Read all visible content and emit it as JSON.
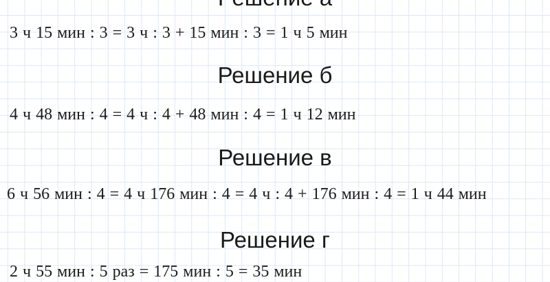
{
  "page": {
    "kind": "math-solutions-sheet",
    "background_color": "#ffffff",
    "grid_line_color": "#dde7f7",
    "heading_color": "#1a1a1a",
    "equation_color": "#1b1b1b"
  },
  "sections": [
    {
      "heading": "Решение а",
      "equation": "3 ч 15 мин : 3 = 3 ч : 3 + 15 мин : 3 = 1 ч 5 мин"
    },
    {
      "heading": "Решение б",
      "equation": "4 ч 48 мин : 4 = 4 ч : 4 + 48 мин : 4 = 1 ч 12 мин"
    },
    {
      "heading": "Решение в",
      "equation": "6 ч 56 мин : 4 = 4 ч 176 мин : 4 = 4 ч : 4 + 176 мин : 4 = 1 ч 44 мин"
    },
    {
      "heading": "Решение г",
      "equation": "2 ч 55 мин : 5 раз = 175 мин : 5 = 35 мин"
    }
  ]
}
